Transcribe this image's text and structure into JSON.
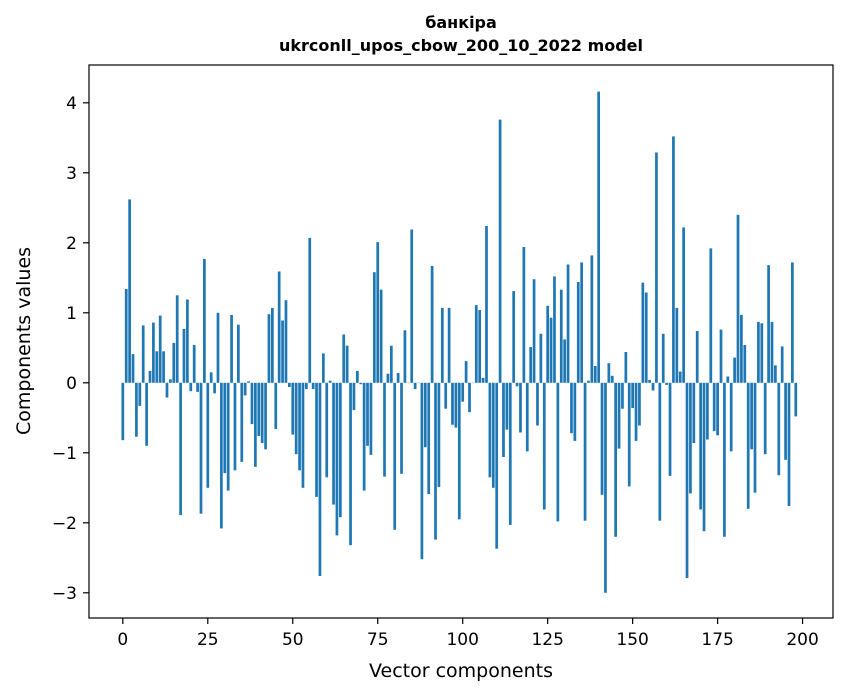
{
  "chart_data": {
    "type": "bar",
    "title_line1": "банкіра",
    "title_line2": "ukrconll_upos_cbow_200_10_2022 model",
    "xlabel": "Vector components",
    "ylabel": "Components values",
    "xlim": [
      -9.95,
      208.95
    ],
    "ylim": [
      -3.36,
      4.54
    ],
    "xticks": [
      0,
      25,
      50,
      75,
      100,
      125,
      150,
      175,
      200
    ],
    "yticks": [
      -3,
      -2,
      -1,
      0,
      1,
      2,
      3,
      4
    ],
    "ytick_labels": [
      "−3",
      "−2",
      "−1",
      "0",
      "1",
      "2",
      "3",
      "4"
    ],
    "grid": false,
    "bar_color": "#1f77b4",
    "values": [
      -0.82,
      1.34,
      2.62,
      0.41,
      -0.77,
      -0.33,
      0.82,
      -0.9,
      0.17,
      0.86,
      0.45,
      0.96,
      0.45,
      -0.21,
      0.05,
      0.57,
      1.25,
      -1.89,
      0.77,
      1.19,
      -0.12,
      0.54,
      -0.13,
      -1.87,
      1.77,
      -1.5,
      0.15,
      -0.15,
      1.0,
      -2.08,
      -1.29,
      -1.54,
      0.97,
      -1.25,
      0.83,
      -1.13,
      -0.18,
      0.02,
      -0.59,
      -1.2,
      -0.76,
      -0.86,
      -0.95,
      0.98,
      1.07,
      -0.66,
      1.59,
      0.89,
      1.18,
      -0.06,
      -0.74,
      -1.02,
      -1.25,
      -1.5,
      -0.09,
      2.07,
      -0.09,
      -1.63,
      -2.76,
      0.42,
      -1.35,
      0.03,
      -1.74,
      -2.18,
      -1.92,
      0.69,
      0.53,
      -2.32,
      -0.39,
      0.17,
      -0.02,
      -1.54,
      -0.9,
      -1.03,
      1.58,
      2.01,
      1.33,
      -1.34,
      0.13,
      0.53,
      -2.1,
      0.14,
      -1.3,
      0.75,
      0.0,
      2.19,
      -0.09,
      0.0,
      -2.52,
      -0.92,
      -1.59,
      1.67,
      -2.24,
      -1.49,
      1.07,
      -0.37,
      1.07,
      -0.6,
      -0.64,
      -1.95,
      -0.27,
      0.31,
      -0.42,
      0.0,
      1.11,
      1.04,
      0.07,
      2.24,
      -1.35,
      -1.5,
      -2.37,
      3.76,
      -1.06,
      -0.67,
      -2.03,
      1.31,
      -0.05,
      -0.71,
      1.94,
      -0.98,
      0.51,
      1.48,
      -0.61,
      0.7,
      -1.81,
      1.1,
      0.93,
      1.52,
      -1.98,
      1.33,
      0.62,
      1.69,
      -0.72,
      -0.83,
      1.44,
      1.72,
      -1.97,
      0.03,
      1.82,
      0.24,
      4.16,
      -1.6,
      -3.0,
      0.28,
      0.1,
      -2.2,
      -0.94,
      -0.37,
      0.44,
      -1.48,
      -0.36,
      -0.83,
      -0.61,
      1.43,
      1.29,
      0.04,
      -0.11,
      3.29,
      -1.97,
      0.7,
      -0.03,
      -1.33,
      3.52,
      1.07,
      0.16,
      2.22,
      -2.79,
      -1.58,
      -0.86,
      0.74,
      -1.81,
      -2.12,
      -0.81,
      1.92,
      -0.69,
      -0.75,
      0.76,
      -2.2,
      0.09,
      -0.98,
      0.36,
      2.4,
      0.97,
      0.54,
      -1.8,
      -0.95,
      -1.57,
      0.87,
      0.85,
      -1.02,
      1.68,
      0.87,
      0.25,
      -1.32,
      0.52,
      -1.1,
      -1.76,
      1.72,
      -0.48
    ]
  }
}
